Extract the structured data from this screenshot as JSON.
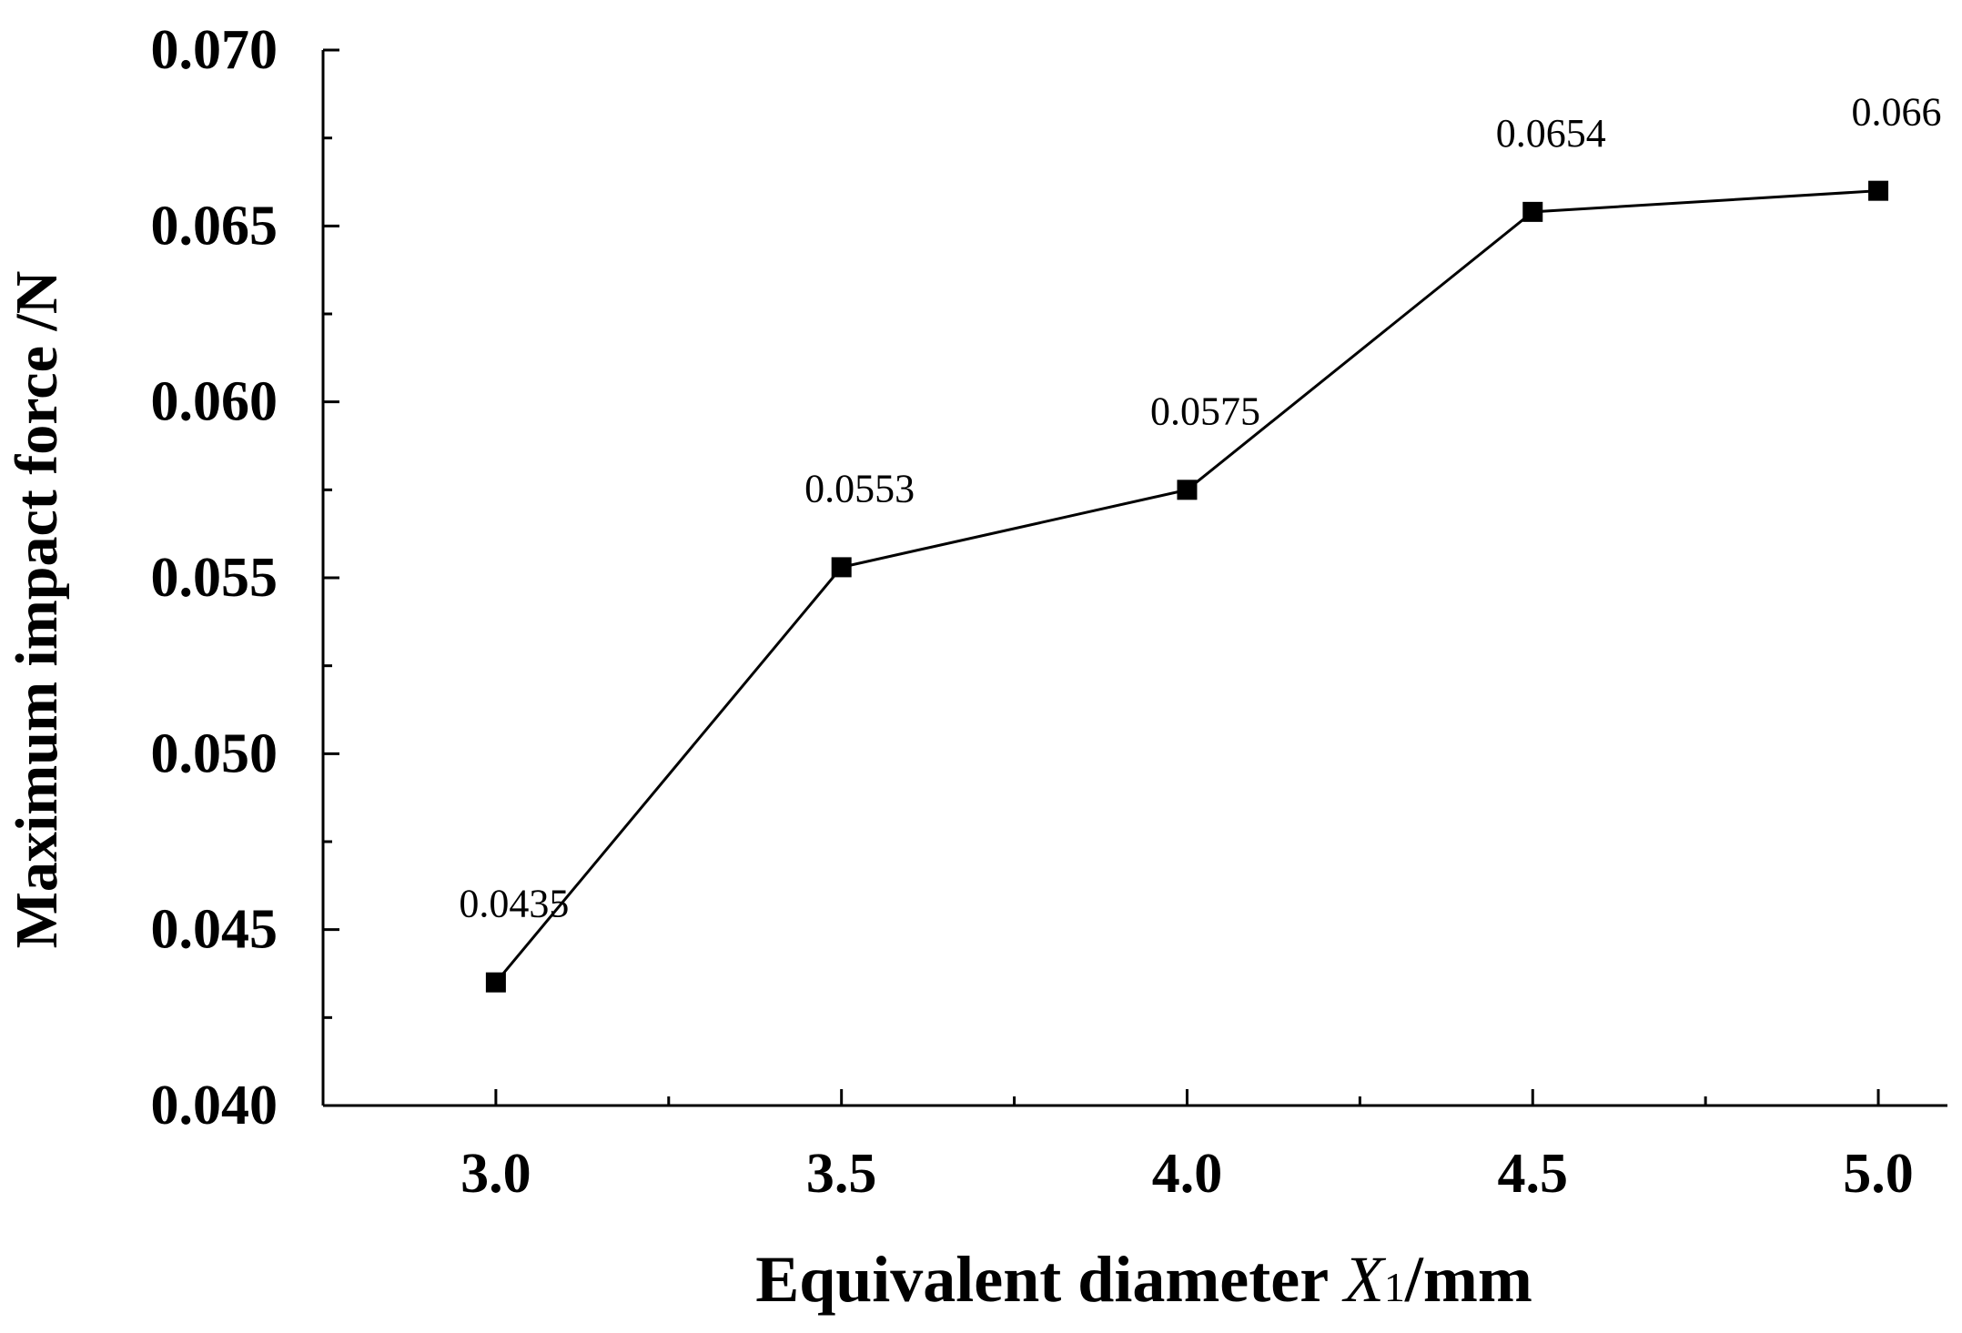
{
  "chart_data": {
    "type": "line",
    "title": "",
    "xlabel": {
      "main": "Equivalent diameter ",
      "var": "X",
      "sub": "1",
      "unit": "/mm"
    },
    "ylabel": "Maximum impact force  /N",
    "xlim": [
      2.75,
      5.1
    ],
    "ylim": [
      0.04,
      0.07
    ],
    "x_ticks": [
      "3.0",
      "3.5",
      "4.0",
      "4.5",
      "5.0"
    ],
    "y_ticks": [
      "0.040",
      "0.045",
      "0.050",
      "0.055",
      "0.060",
      "0.065",
      "0.070"
    ],
    "grid": false,
    "legend": "none",
    "marker": "square",
    "line_color": "#000000",
    "series": [
      {
        "x": [
          3.0,
          3.5,
          4.0,
          4.5,
          5.0
        ],
        "y": [
          0.0435,
          0.0553,
          0.0575,
          0.0654,
          0.066
        ],
        "labels": [
          "0.0435",
          "0.0553",
          "0.0575",
          "0.0654",
          "0.066"
        ]
      }
    ]
  }
}
